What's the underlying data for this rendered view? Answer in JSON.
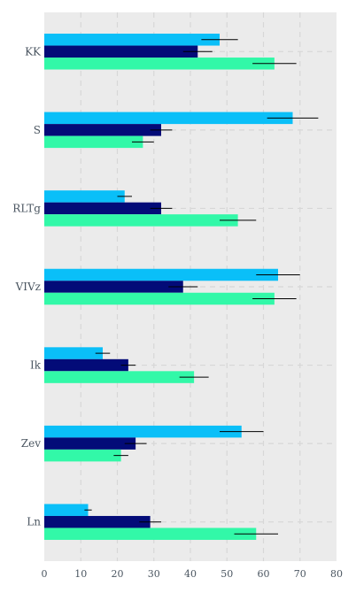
{
  "chart_data": {
    "type": "bar",
    "orientation": "horizontal",
    "categories": [
      "KK",
      "S",
      "RLTg",
      "VIVz",
      "Ik",
      "Zev",
      "Ln"
    ],
    "series": [
      {
        "values": [
          48,
          68,
          22,
          64,
          16,
          54,
          12
        ],
        "errors": [
          5,
          7,
          2,
          6,
          2,
          6,
          1
        ],
        "color": "#0abff8"
      },
      {
        "values": [
          42,
          32,
          32,
          38,
          23,
          25,
          29
        ],
        "errors": [
          4,
          3,
          3,
          4,
          2,
          3,
          3
        ],
        "color": "#030b78"
      },
      {
        "values": [
          63,
          27,
          53,
          63,
          41,
          21,
          58
        ],
        "errors": [
          6,
          3,
          5,
          6,
          4,
          2,
          6
        ],
        "color": "#32f8a8"
      }
    ],
    "xticks": [
      0,
      10,
      20,
      30,
      40,
      50,
      60,
      70,
      80
    ],
    "xlim": [
      0,
      80
    ],
    "grid": true,
    "legend": "none",
    "colors": {
      "background": "#ebebeb",
      "grid": "#d7d7d7",
      "error_bar": "#000000"
    }
  }
}
